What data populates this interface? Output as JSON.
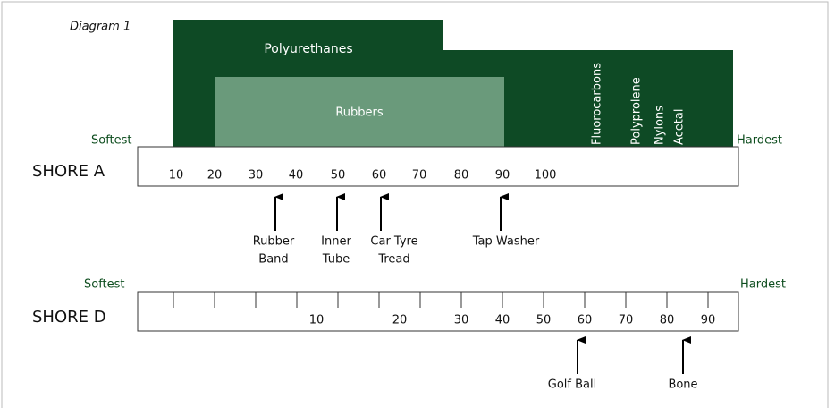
{
  "title": "Diagram 1",
  "regions": {
    "polyurethanes": "Polyurethanes",
    "rubbers": "Rubbers",
    "materials": [
      "Fluorocarbons",
      "Polyprolene",
      "Nylons",
      "Acetal"
    ]
  },
  "shore_a": {
    "label": "SHORE A",
    "softest": "Softest",
    "hardest": "Hardest",
    "ticks": [
      10,
      20,
      30,
      40,
      50,
      60,
      70,
      80,
      90,
      100
    ],
    "examples": [
      {
        "lines": [
          "Rubber",
          "Band"
        ]
      },
      {
        "lines": [
          "Inner",
          "Tube"
        ]
      },
      {
        "lines": [
          "Car Tyre",
          "Tread"
        ]
      },
      {
        "lines": [
          "Tap Washer"
        ]
      }
    ]
  },
  "shore_d": {
    "label": "SHORE D",
    "softest": "Softest",
    "hardest": "Hardest",
    "ticks": [
      10,
      20,
      30,
      40,
      50,
      60,
      70,
      80,
      90
    ],
    "examples": [
      {
        "lines": [
          "Golf Ball"
        ]
      },
      {
        "lines": [
          "Bone"
        ]
      }
    ]
  }
}
